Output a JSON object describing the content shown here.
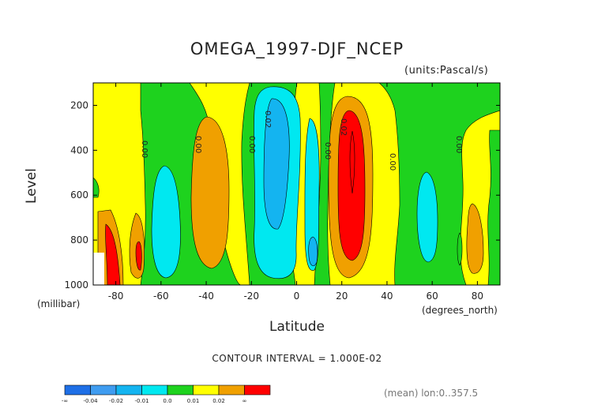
{
  "chart_data": {
    "type": "heatmap",
    "title": "OMEGA_1997-DJF_NCEP",
    "subtitle": "(units:Pascal/s)",
    "xlabel": "Latitude",
    "ylabel": "Level",
    "ylabel_unit": "(millibar)",
    "xlabel_unit": "(degrees_north)",
    "xlim": [
      -90,
      90
    ],
    "ylim": [
      1000,
      100
    ],
    "x_ticks": [
      "-80",
      "-60",
      "-40",
      "-20",
      "0",
      "20",
      "40",
      "60",
      "80"
    ],
    "y_ticks": [
      "200",
      "400",
      "600",
      "800",
      "1000"
    ],
    "contour_interval_text": "CONTOUR INTERVAL = 1.000E-02",
    "footer_text": "(mean) lon:0..357.5",
    "contour_labels": [
      "0.00",
      "0.00",
      "0.00",
      "0.02",
      "0.00",
      "0.02",
      "0.00",
      "0.00"
    ],
    "colorbar": {
      "labels": [
        "-∞",
        "-0.04",
        "-0.02",
        "-0.01",
        "0.0",
        "0.01",
        "0.02",
        "∞"
      ],
      "colors": [
        "#1e6fe6",
        "#3f9cf0",
        "#14b4f0",
        "#00e8f0",
        "#1ed21e",
        "#ffff00",
        "#f0a000",
        "#ff0000"
      ]
    },
    "features": [
      {
        "lat": 25,
        "p_top": 220,
        "p_bot": 880,
        "value": 0.025
      },
      {
        "lat": 25,
        "p_top": 190,
        "p_bot": 940,
        "value": 0.015
      },
      {
        "lat": -12,
        "p_top": 170,
        "p_bot": 780,
        "value": -0.015
      },
      {
        "lat": -12,
        "p_top": 140,
        "p_bot": 900,
        "value": -0.01
      },
      {
        "lat": 7,
        "p_top": 860,
        "p_bot": 860,
        "value": -0.012
      },
      {
        "lat": -35,
        "p_top": 260,
        "p_bot": 920,
        "value": 0.012
      },
      {
        "lat": -57,
        "p_top": 470,
        "p_bot": 940,
        "value": -0.01
      },
      {
        "lat": 55,
        "p_top": 530,
        "p_bot": 860,
        "value": -0.01
      },
      {
        "lat": 80,
        "p_top": 690,
        "p_bot": 900,
        "value": 0.012
      },
      {
        "lat": -80,
        "p_top": 780,
        "p_bot": 1000,
        "value": 0.025
      }
    ]
  }
}
